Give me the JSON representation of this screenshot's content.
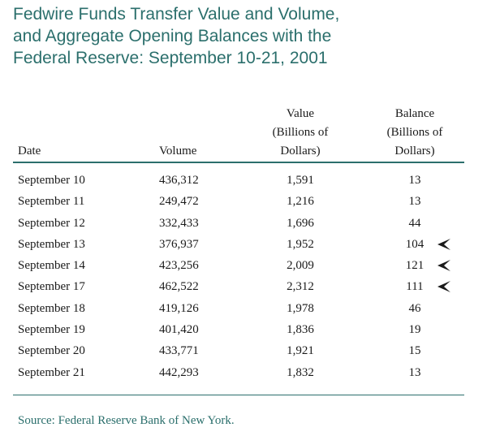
{
  "title": {
    "line1": "Fedwire Funds Transfer Value and Volume,",
    "line2": "and Aggregate Opening Balances with the",
    "line3": "Federal Reserve: September 10-21, 2001"
  },
  "headers": {
    "date": "Date",
    "volume": "Volume",
    "value_l1": "Value",
    "value_l2": "(Billions of",
    "value_l3": "Dollars)",
    "balance_l1": "Balance",
    "balance_l2": "(Billions of",
    "balance_l3": "Dollars)"
  },
  "rows": [
    {
      "date": "September 10",
      "volume": "436,312",
      "value": "1,591",
      "balance": "13",
      "marked": false
    },
    {
      "date": "September 11",
      "volume": "249,472",
      "value": "1,216",
      "balance": "13",
      "marked": false
    },
    {
      "date": "September 12",
      "volume": "332,433",
      "value": "1,696",
      "balance": "44",
      "marked": false
    },
    {
      "date": "September 13",
      "volume": "376,937",
      "value": "1,952",
      "balance": "104",
      "marked": true
    },
    {
      "date": "September 14",
      "volume": "423,256",
      "value": "2,009",
      "balance": "121",
      "marked": true
    },
    {
      "date": "September 17",
      "volume": "462,522",
      "value": "2,312",
      "balance": "111",
      "marked": true
    },
    {
      "date": "September 18",
      "volume": "419,126",
      "value": "1,978",
      "balance": "46",
      "marked": false
    },
    {
      "date": "September 19",
      "volume": "401,420",
      "value": "1,836",
      "balance": "19",
      "marked": false
    },
    {
      "date": "September 20",
      "volume": "433,771",
      "value": "1,921",
      "balance": "15",
      "marked": false
    },
    {
      "date": "September 21",
      "volume": "442,293",
      "value": "1,832",
      "balance": "13",
      "marked": false
    }
  ],
  "marker_icon": "arrow-pointer-icon",
  "source": "Source: Federal Reserve Bank of New York.",
  "colors": {
    "accent": "#2b6f6c",
    "text": "#1a1a1a"
  }
}
